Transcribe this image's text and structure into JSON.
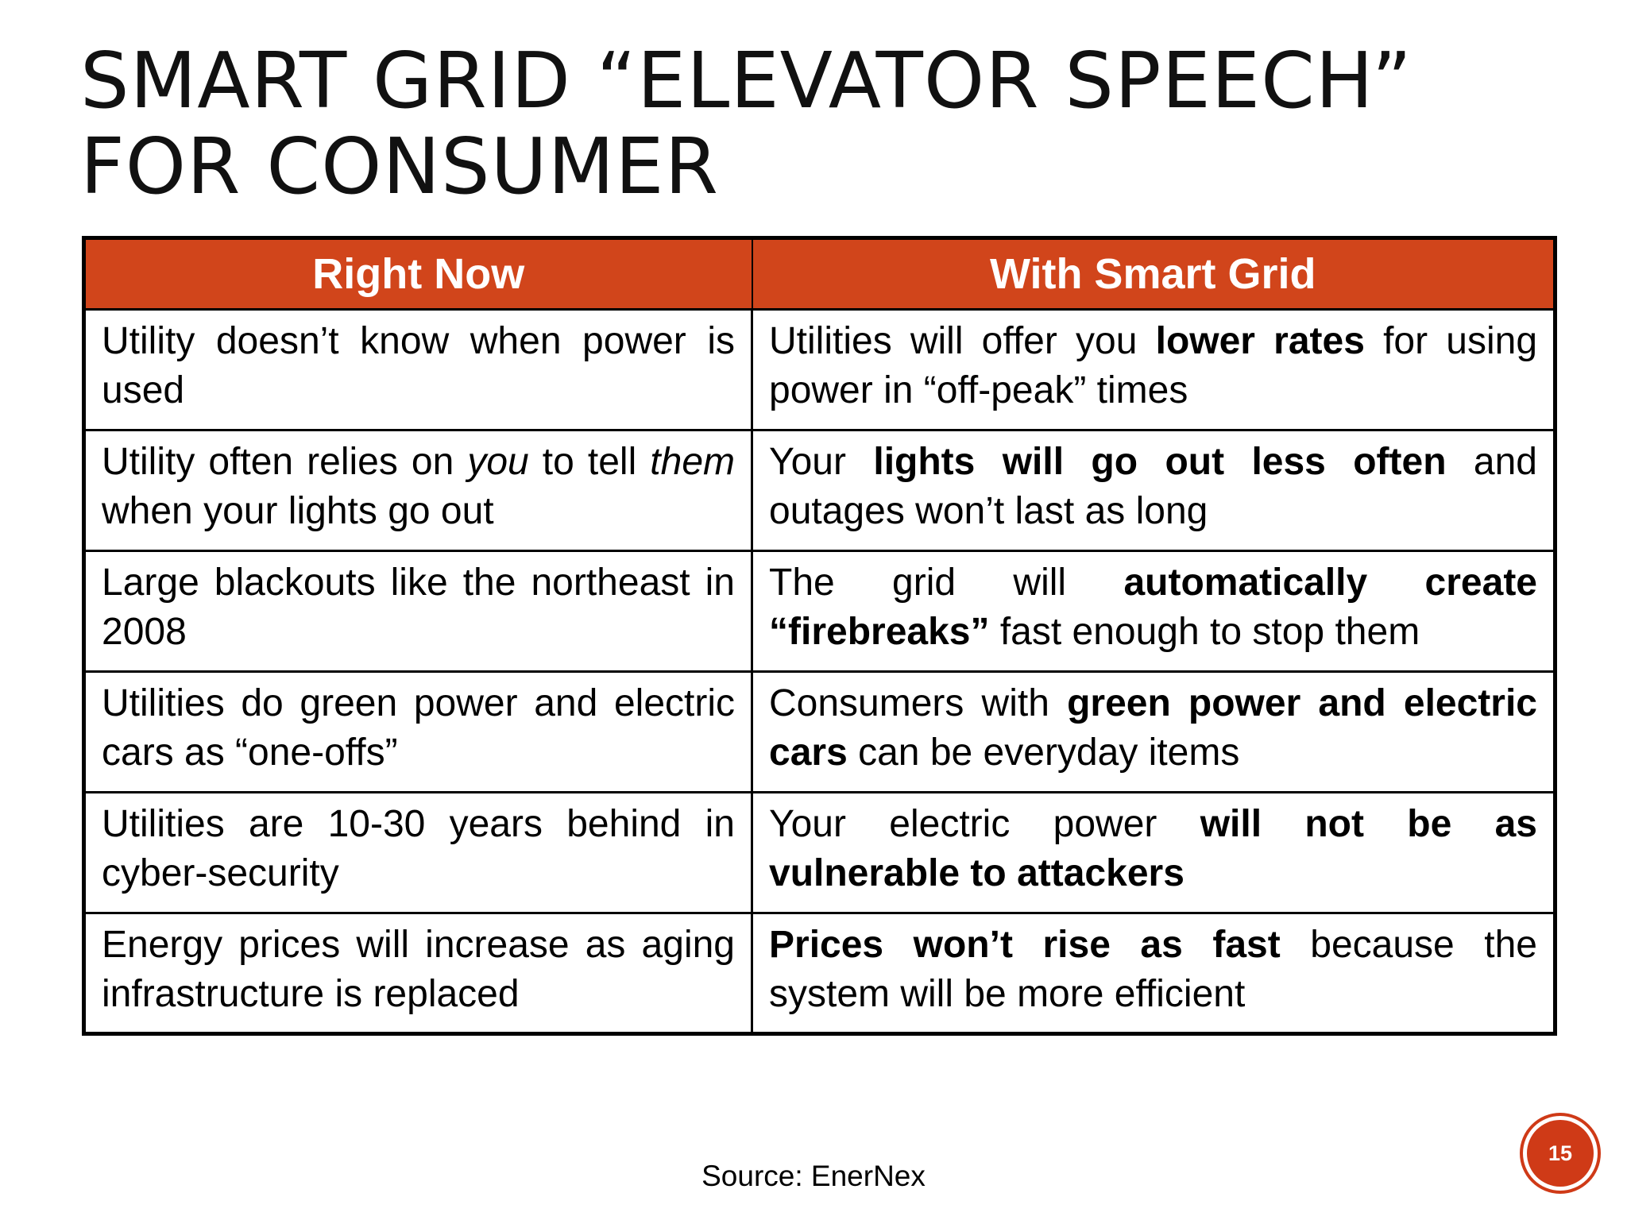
{
  "title": {
    "line1": "SMART GRID “ELEVATOR SPEECH”",
    "line2": "FOR CONSUMER"
  },
  "table": {
    "headers": [
      "Right Now",
      "With Smart Grid"
    ],
    "rows": [
      {
        "now": [
          {
            "t": "Utility doesn’t know when power is used"
          }
        ],
        "smart": [
          {
            "t": "Utilities will offer you "
          },
          {
            "t": "lower rates",
            "b": true
          },
          {
            "t": " for using power in “off-peak” times"
          }
        ]
      },
      {
        "now": [
          {
            "t": "Utility often relies on "
          },
          {
            "t": "you",
            "i": true
          },
          {
            "t": " to tell "
          },
          {
            "t": "them",
            "i": true
          },
          {
            "t": " when your lights go out"
          }
        ],
        "smart": [
          {
            "t": "Your "
          },
          {
            "t": "lights will go out less often",
            "b": true
          },
          {
            "t": " and outages won’t last as long"
          }
        ]
      },
      {
        "now": [
          {
            "t": "Large blackouts like the northeast in 2008"
          }
        ],
        "smart": [
          {
            "t": "The grid will "
          },
          {
            "t": "automatically create “firebreaks”",
            "b": true
          },
          {
            "t": " fast enough to stop them"
          }
        ]
      },
      {
        "now": [
          {
            "t": "Utilities do green power and electric cars as “one-offs”"
          }
        ],
        "smart": [
          {
            "t": "Consumers with "
          },
          {
            "t": "green power and electric cars",
            "b": true
          },
          {
            "t": " can be everyday items"
          }
        ]
      },
      {
        "now": [
          {
            "t": "Utilities are 10-30 years behind in cyber-security"
          }
        ],
        "smart": [
          {
            "t": "Your electric power "
          },
          {
            "t": "will not be as vulnerable to attackers",
            "b": true
          }
        ]
      },
      {
        "now": [
          {
            "t": "Energy prices will increase as aging infrastructure is replaced"
          }
        ],
        "smart": [
          {
            "t": "Prices won’t rise as fast",
            "b": true
          },
          {
            "t": " because the system will be more efficient"
          }
        ]
      }
    ]
  },
  "source": "Source: EnerNex",
  "page_number": "15",
  "colors": {
    "accent": "#d1451b",
    "header_text": "#ffffff",
    "border": "#000000"
  }
}
